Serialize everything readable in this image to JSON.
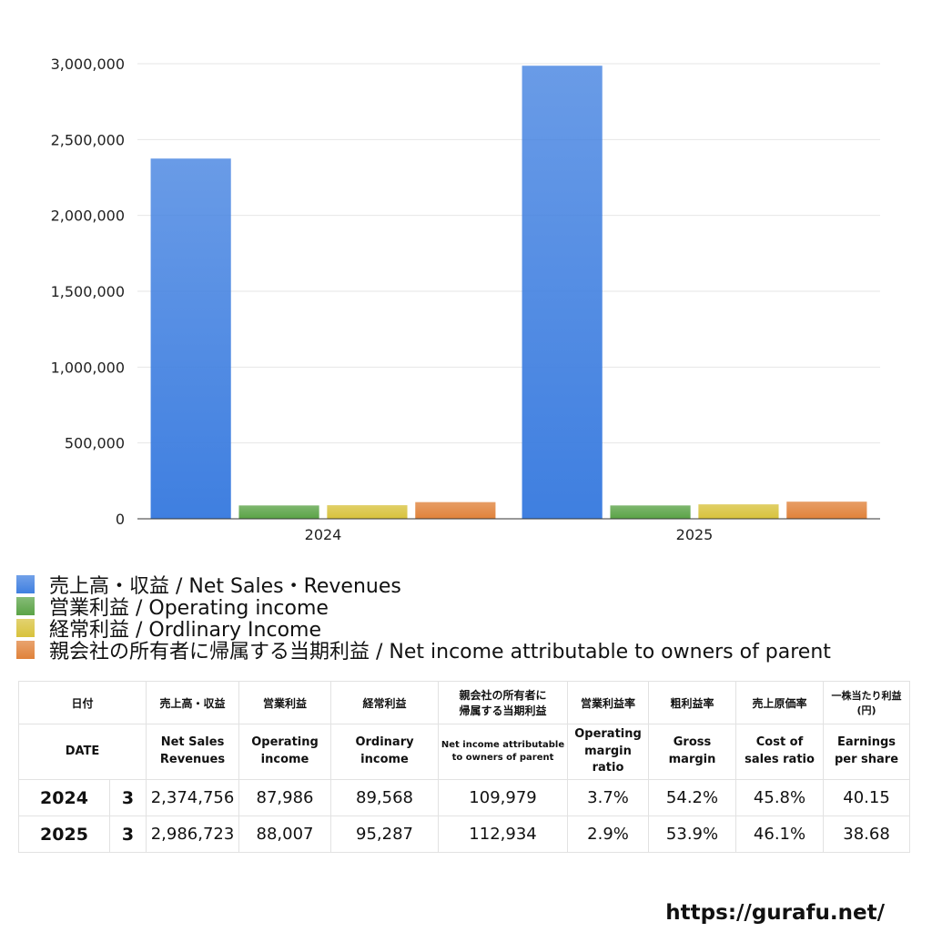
{
  "chart_data": {
    "type": "bar",
    "categories": [
      "2024",
      "2025"
    ],
    "series": [
      {
        "name": "売上高・収益 / Net Sales・Revenues",
        "values": [
          2374756,
          2986723
        ],
        "color": "#3f7fe0"
      },
      {
        "name": "営業利益 / Operating income",
        "values": [
          87986,
          88007
        ],
        "color": "#5aa346"
      },
      {
        "name": "経常利益 / Ordlinary Income",
        "values": [
          89568,
          95287
        ],
        "color": "#d8c23c"
      },
      {
        "name": "親会社の所有者に帰属する当期利益 / Net income attributable to owners of parent",
        "values": [
          109979,
          112934
        ],
        "color": "#e0823a"
      }
    ],
    "yticks": [
      {
        "value": 0,
        "label": "0"
      },
      {
        "value": 500000,
        "label": "500,000"
      },
      {
        "value": 1000000,
        "label": "1,000,000"
      },
      {
        "value": 1500000,
        "label": "1,500,000"
      },
      {
        "value": 2000000,
        "label": "2,000,000"
      },
      {
        "value": 2500000,
        "label": "2,500,000"
      },
      {
        "value": 3000000,
        "label": "3,000,000"
      }
    ],
    "ylim": [
      0,
      3000000
    ],
    "grid": true,
    "legend_position": "bottom"
  },
  "table": {
    "header_jp": [
      "日付",
      "",
      "売上高・収益",
      "営業利益",
      "経常利益",
      "親会社の所有者に\n帰属する当期利益",
      "営業利益率",
      "粗利益率",
      "売上原価率",
      "一株当たり利益\n(円)"
    ],
    "header_en": [
      "DATE",
      "",
      "Net Sales\nRevenues",
      "Operating\nincome",
      "Ordinary\nincome",
      "Net income attributable\nto owners of parent",
      "Operating\nmargin\nratio",
      "Gross\nmargin",
      "Cost of\nsales ratio",
      "Earnings\nper share"
    ],
    "rows": [
      [
        "2024",
        "3",
        "2,374,756",
        "87,986",
        "89,568",
        "109,979",
        "3.7%",
        "54.2%",
        "45.8%",
        "40.15"
      ],
      [
        "2025",
        "3",
        "2,986,723",
        "88,007",
        "95,287",
        "112,934",
        "2.9%",
        "53.9%",
        "46.1%",
        "38.68"
      ]
    ]
  },
  "footer": {
    "url": "https://gurafu.net/"
  }
}
